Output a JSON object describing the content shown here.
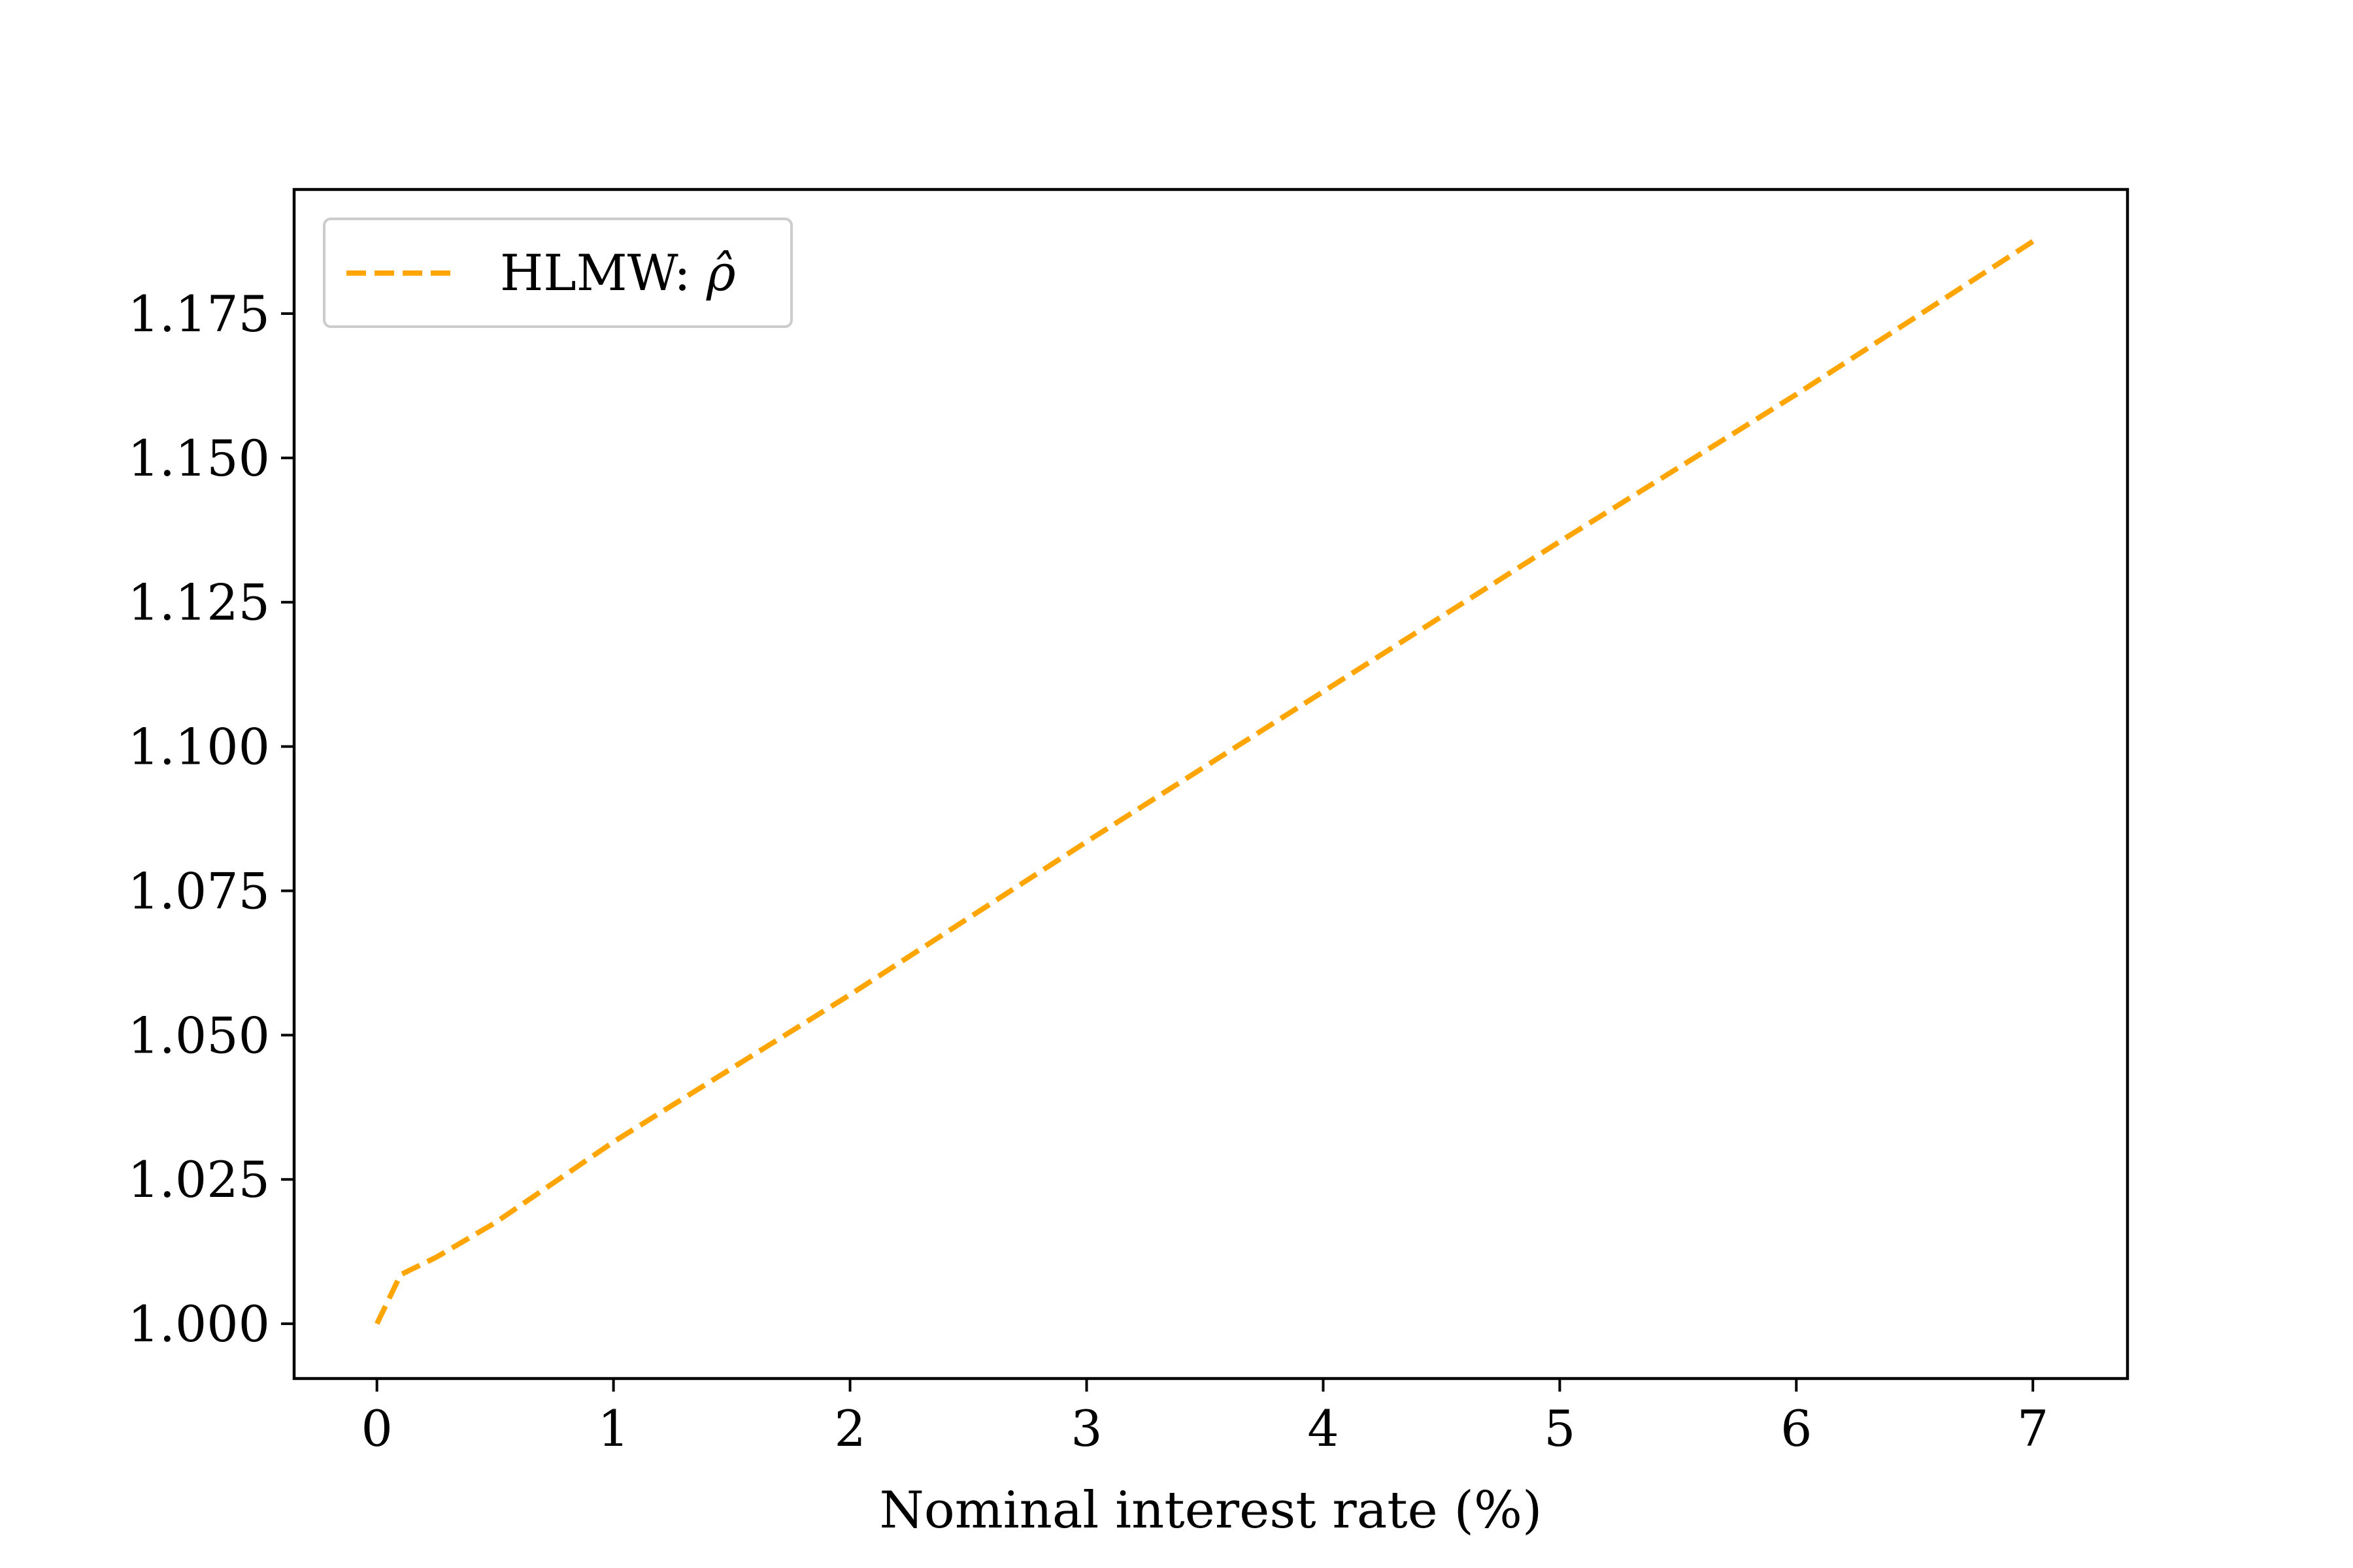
{
  "chart_data": {
    "type": "line",
    "title": "",
    "xlabel": "Nominal interest rate (%)",
    "ylabel": "",
    "xlim": [
      -0.35,
      7.4
    ],
    "ylim": [
      0.9905,
      1.1965
    ],
    "x_ticks": [
      0,
      1,
      2,
      3,
      4,
      5,
      6,
      7
    ],
    "x_tick_labels": [
      "0",
      "1",
      "2",
      "3",
      "4",
      "5",
      "6",
      "7"
    ],
    "y_ticks": [
      1.0,
      1.025,
      1.05,
      1.075,
      1.1,
      1.125,
      1.15,
      1.175
    ],
    "y_tick_labels": [
      "1.000",
      "1.025",
      "1.050",
      "1.075",
      "1.100",
      "1.125",
      "1.150",
      "1.175"
    ],
    "grid": false,
    "legend_location": "upper left",
    "series": [
      {
        "name": "HLMW: ρ̂",
        "legend_label": "HLMW: ",
        "legend_symbol": "ρ̂",
        "color": "#FFA500",
        "line_style": "dashed",
        "x": [
          0,
          0.1,
          0.25,
          0.5,
          1,
          2,
          3,
          4,
          5,
          6,
          7
        ],
        "y": [
          1.0,
          1.0085,
          1.0115,
          1.0175,
          1.0315,
          1.057,
          1.0835,
          1.1095,
          1.1355,
          1.161,
          1.1875
        ]
      }
    ]
  }
}
